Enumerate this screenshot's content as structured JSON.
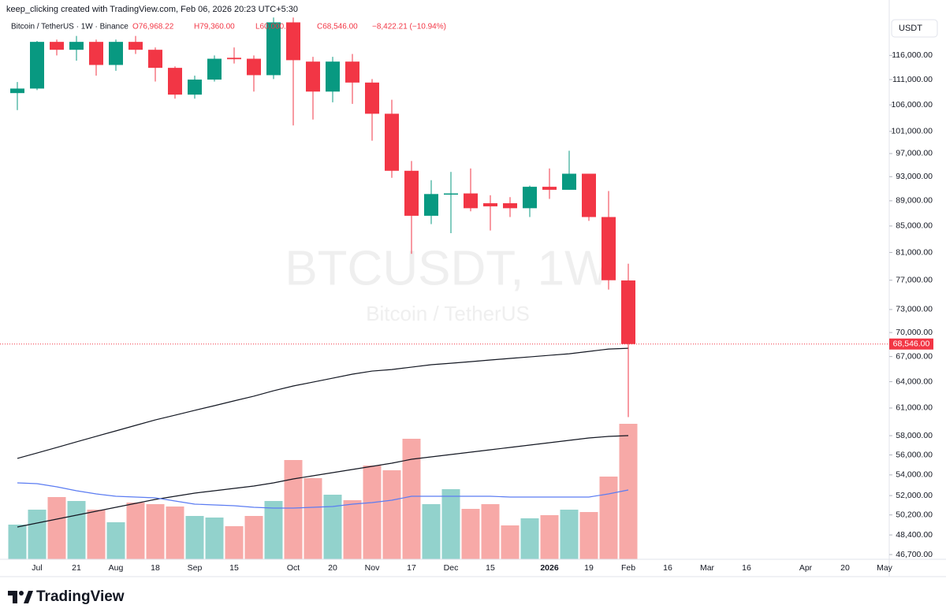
{
  "chart_data": {
    "type": "candlestick",
    "credit": "keep_clicking created with TradingView.com, Feb 06, 2026 20:23 UTC+5:30",
    "legend": {
      "symbol": "Bitcoin / TetherUS · 1W · Binance",
      "ohlc": [
        "O76,968.22",
        "H79,360.00",
        "L60,000.00",
        "C68,546.00"
      ],
      "change": "−8,422.21 (−10.94%)"
    },
    "title": "BTCUSDT, 1W",
    "subtitle": "Bitcoin / TetherUS",
    "currency": "USDT",
    "brand": "TradingView",
    "categories": [
      null,
      "Jul",
      null,
      "21",
      null,
      "Aug",
      null,
      "18",
      null,
      "Sep",
      null,
      "15",
      null,
      null,
      "Oct",
      null,
      "20",
      null,
      "Nov",
      null,
      "17",
      null,
      "Dec",
      null,
      "15",
      null,
      null,
      "2026",
      null,
      "19",
      null,
      "Feb",
      null,
      "16",
      null,
      "Mar",
      null,
      "16",
      null,
      null,
      "Apr",
      null,
      "20",
      null,
      "May"
    ],
    "open": [
      108300,
      109200,
      118900,
      117200,
      118900,
      114000,
      118900,
      117200,
      113400,
      108000,
      111000,
      115500,
      115300,
      111900,
      123200,
      114700,
      108600,
      114700,
      110400,
      104300,
      94000,
      86600,
      90000,
      90200,
      88600,
      88600,
      87800,
      91300,
      90800,
      93500,
      86400,
      76968.22,
      null,
      null,
      null,
      null,
      null,
      null,
      null,
      null,
      null,
      null,
      null,
      null,
      null
    ],
    "high": [
      110500,
      119100,
      119400,
      120200,
      119400,
      119400,
      120200,
      117700,
      113700,
      111800,
      116000,
      117700,
      116000,
      124300,
      124300,
      115700,
      115700,
      116300,
      111100,
      107000,
      95700,
      92400,
      93800,
      94400,
      89900,
      89600,
      91500,
      94400,
      97500,
      93500,
      90600,
      79360,
      null,
      null,
      null,
      null,
      null,
      null,
      null,
      null,
      null,
      null,
      null,
      null,
      null
    ],
    "low": [
      105000,
      108900,
      116000,
      114900,
      111800,
      112800,
      116300,
      110600,
      107200,
      107200,
      110600,
      114300,
      108600,
      111100,
      102100,
      103200,
      106500,
      106200,
      99300,
      92800,
      80800,
      85300,
      83900,
      87300,
      84300,
      86400,
      86400,
      89300,
      90800,
      85800,
      75700,
      60000,
      null,
      null,
      null,
      null,
      null,
      null,
      null,
      null,
      null,
      null,
      null,
      null,
      null
    ],
    "close": [
      109200,
      118900,
      117200,
      118900,
      114000,
      118900,
      117200,
      113400,
      108000,
      111000,
      115300,
      115200,
      111900,
      123200,
      115000,
      108600,
      114700,
      110400,
      104300,
      94000,
      86600,
      90100,
      90200,
      87800,
      88100,
      87800,
      91300,
      90800,
      93500,
      86400,
      77000,
      68546,
      null,
      null,
      null,
      null,
      null,
      null,
      null,
      null,
      null,
      null,
      null,
      null,
      null
    ],
    "volume": [
      44,
      63,
      79,
      74,
      63,
      47,
      72,
      70,
      67,
      55,
      53,
      42,
      55,
      74,
      126,
      103,
      82,
      75,
      119,
      113,
      153,
      70,
      89,
      64,
      70,
      43,
      52,
      56,
      63,
      60,
      105,
      172,
      null,
      null,
      null,
      null,
      null,
      null,
      null,
      null,
      null,
      null,
      null,
      null,
      null
    ],
    "volume_lim": [
      0,
      200
    ],
    "lines": [
      {
        "color": "#131722",
        "panel": "price",
        "values": [
          55650,
          56200,
          56770,
          57350,
          57930,
          58510,
          59100,
          59690,
          60210,
          60740,
          61260,
          61800,
          62330,
          62950,
          63500,
          63950,
          64410,
          64880,
          65250,
          65430,
          65720,
          66010,
          66190,
          66380,
          66580,
          66770,
          66960,
          67150,
          67340,
          67630,
          67920,
          68020,
          null,
          null,
          null,
          null,
          null,
          null,
          null,
          null,
          null,
          null,
          null,
          null,
          null
        ]
      },
      {
        "color": "#131722",
        "panel": "volume",
        "values": [
          41,
          46,
          51,
          56,
          61,
          66,
          71,
          76,
          80,
          84,
          87,
          90,
          93,
          97,
          102,
          106,
          110,
          114,
          118,
          122,
          127,
          130,
          133,
          136,
          139,
          142,
          145,
          148,
          151,
          154,
          156,
          157,
          null,
          null,
          null,
          null,
          null,
          null,
          null,
          null,
          null,
          null,
          null,
          null,
          null
        ]
      },
      {
        "color": "#5b7cf2",
        "panel": "volume",
        "values": [
          97,
          96,
          92,
          87,
          83,
          80,
          79,
          78,
          74,
          70,
          69,
          68,
          66,
          65,
          65,
          66,
          67,
          70,
          72,
          75,
          80,
          80,
          80,
          80,
          80,
          79,
          79,
          79,
          79,
          79,
          83,
          88,
          null,
          null,
          null,
          null,
          null,
          null,
          null,
          null,
          null,
          null,
          null,
          null,
          null
        ]
      }
    ],
    "up_color": "#089981",
    "down_color": "#f23645",
    "up_volume_color": "#92d2cc",
    "down_volume_color": "#f7a9a7",
    "log_scale": true,
    "ylim": [
      46300,
      126500
    ],
    "yticks": [
      {
        "value": 116000,
        "label": "116,000.00"
      },
      {
        "value": 111000,
        "label": "111,000.00"
      },
      {
        "value": 106000,
        "label": "106,000.00"
      },
      {
        "value": 101000,
        "label": "101,000.00"
      },
      {
        "value": 97000,
        "label": "97,000.00"
      },
      {
        "value": 93000,
        "label": "93,000.00"
      },
      {
        "value": 89000,
        "label": "89,000.00"
      },
      {
        "value": 85000,
        "label": "85,000.00"
      },
      {
        "value": 81000,
        "label": "81,000.00"
      },
      {
        "value": 77000,
        "label": "77,000.00"
      },
      {
        "value": 73000,
        "label": "73,000.00"
      },
      {
        "value": 70000,
        "label": "70,000.00"
      },
      {
        "value": 67000,
        "label": "67,000.00"
      },
      {
        "value": 64000,
        "label": "64,000.00"
      },
      {
        "value": 61000,
        "label": "61,000.00"
      },
      {
        "value": 58000,
        "label": "58,000.00"
      },
      {
        "value": 56000,
        "label": "56,000.00"
      },
      {
        "value": 54000,
        "label": "54,000.00"
      },
      {
        "value": 52000,
        "label": "52,000.00"
      },
      {
        "value": 50200,
        "label": "50,200.00"
      },
      {
        "value": 48400,
        "label": "48,400.00"
      },
      {
        "value": 46700,
        "label": "46,700.00"
      }
    ],
    "last_price": {
      "value": 68546,
      "label": "68,546.00"
    },
    "grid": false
  }
}
